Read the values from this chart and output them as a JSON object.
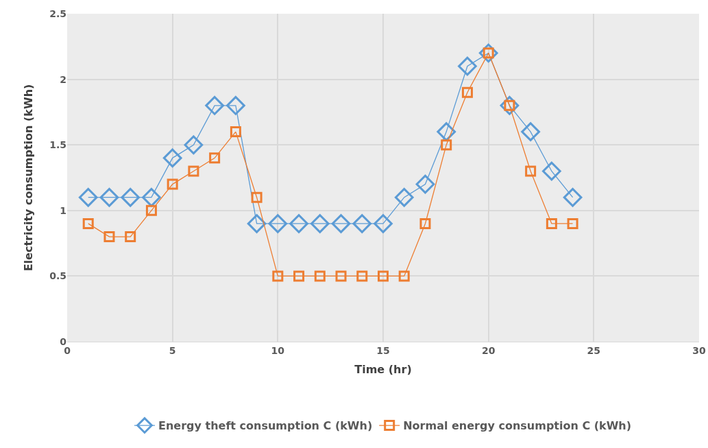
{
  "chart_data": {
    "type": "line",
    "xlabel": "Time (hr)",
    "ylabel": "Electricity consumption (kWh)",
    "x": [
      1,
      2,
      3,
      4,
      5,
      6,
      7,
      8,
      9,
      10,
      11,
      12,
      13,
      14,
      15,
      16,
      17,
      18,
      19,
      20,
      21,
      22,
      23,
      24
    ],
    "series": [
      {
        "name": "Energy theft consumption C (kWh)",
        "color": "#5b9bd5",
        "marker": "diamond",
        "values": [
          1.1,
          1.1,
          1.1,
          1.1,
          1.4,
          1.5,
          1.8,
          1.8,
          0.9,
          0.9,
          0.9,
          0.9,
          0.9,
          0.9,
          0.9,
          1.1,
          1.2,
          1.6,
          2.1,
          2.2,
          1.8,
          1.6,
          1.3,
          1.1
        ]
      },
      {
        "name": "Normal energy consumption C (kWh)",
        "color": "#ed7d31",
        "marker": "square",
        "values": [
          0.9,
          0.8,
          0.8,
          1.0,
          1.2,
          1.3,
          1.4,
          1.6,
          1.1,
          0.5,
          0.5,
          0.5,
          0.5,
          0.5,
          0.5,
          0.5,
          0.9,
          1.5,
          1.9,
          2.2,
          1.8,
          1.3,
          0.9,
          0.9
        ]
      }
    ],
    "xlim": [
      0,
      30
    ],
    "xticks": [
      0,
      5,
      10,
      15,
      20,
      25,
      30
    ],
    "ylim": [
      0,
      2.5
    ],
    "yticks": [
      0,
      0.5,
      1,
      1.5,
      2,
      2.5
    ],
    "grid": true,
    "legend": "bottom",
    "line_style": "solid"
  }
}
